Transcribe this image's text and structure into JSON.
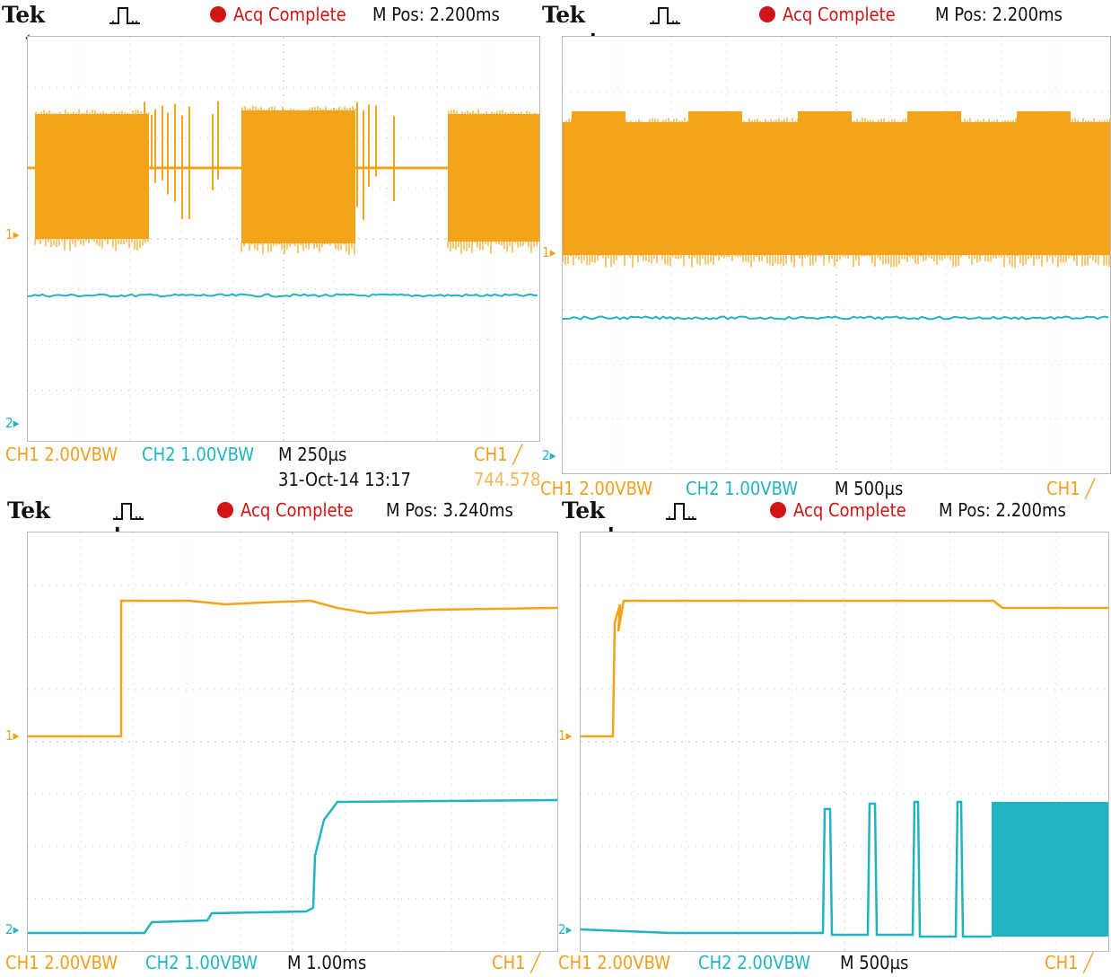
{
  "colors": {
    "ch1": "#f5a31a",
    "ch2": "#20b4c0",
    "acq": "#d01515",
    "grid": "#c6c6c6"
  },
  "panels": [
    {
      "id": "top-left",
      "brand": "Tek",
      "trigger_icon": "pulse-trigger-icon",
      "status": "Acq Complete",
      "position": "M Pos: 2.200ms",
      "ch1_scale": "CH1  2.00VBW",
      "ch2_scale": "CH2  1.00VBW",
      "timebase": "M 250µs",
      "trigger": "CH1 ╱",
      "date": "31-Oct-14 13:17",
      "freq": "744.578",
      "marker1": "1▸",
      "marker2": "2▸"
    },
    {
      "id": "top-right",
      "brand": "Tek",
      "trigger_icon": "pulse-trigger-icon",
      "status": "Acq Complete",
      "position": "M Pos: 2.200ms",
      "ch1_scale": "CH1  2.00VBW",
      "ch2_scale": "CH2  1.00VBW",
      "timebase": "M 500µs",
      "trigger": "CH1 ╱",
      "marker1": "1▸",
      "marker2": "2▸"
    },
    {
      "id": "bottom-left",
      "brand": "Tek",
      "trigger_icon": "pulse-trigger-icon",
      "status": "Acq Complete",
      "position": "M Pos: 3.240ms",
      "ch1_scale": "CH1  2.00VBW",
      "ch2_scale": "CH2  1.00VBW",
      "timebase": "M 1.00ms",
      "trigger": "CH1 ╱",
      "marker1": "1▸",
      "marker2": "2▸"
    },
    {
      "id": "bottom-right",
      "brand": "Tek",
      "trigger_icon": "pulse-trigger-icon",
      "status": "Acq Complete",
      "position": "M Pos: 2.200ms",
      "ch1_scale": "CH1  2.00VBW",
      "ch2_scale": "CH2  2.00VBW",
      "timebase": "M 500µs",
      "trigger": "CH1 ╱",
      "marker1": "1▸",
      "marker2": "2▸"
    }
  ]
}
